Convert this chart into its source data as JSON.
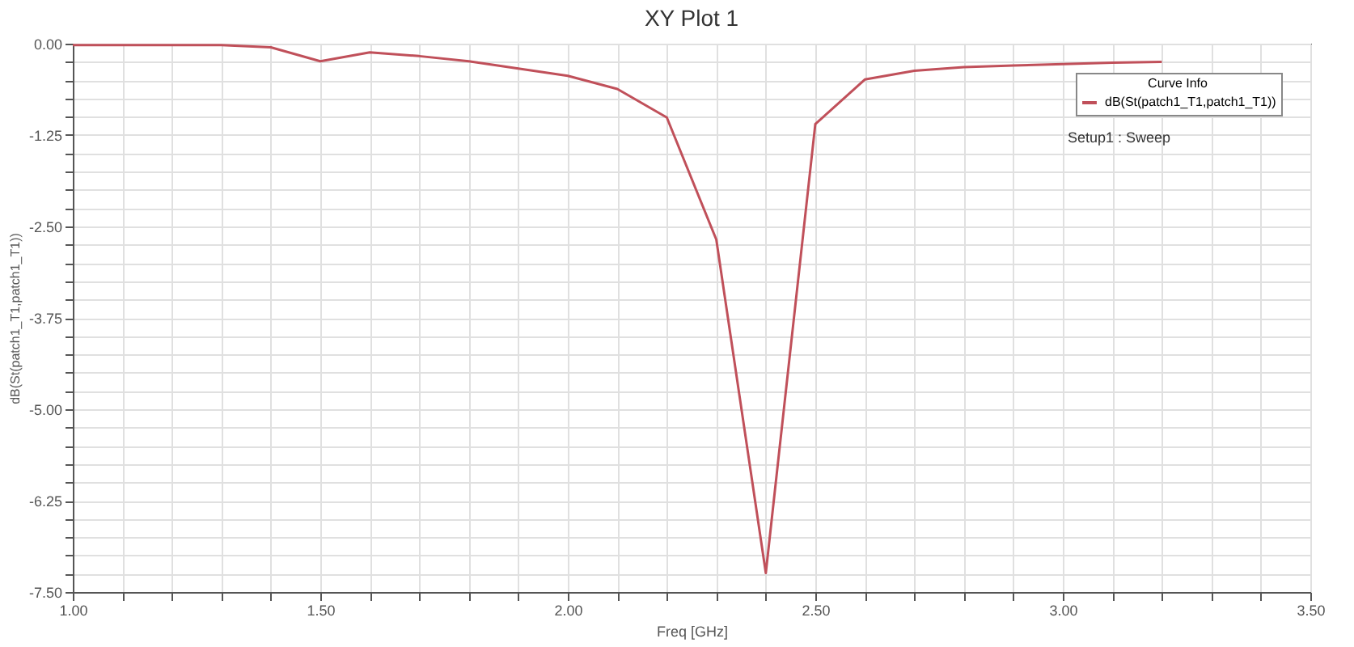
{
  "chart_data": {
    "type": "line",
    "title": "XY Plot 1",
    "xlabel": "Freq [GHz]",
    "ylabel": "dB(St(patch1_T1,patch1_T1))",
    "legend_title": "Curve Info",
    "annotations": [
      "Setup1 : Sweep"
    ],
    "x": [
      1.0,
      1.1,
      1.2,
      1.3,
      1.4,
      1.5,
      1.6,
      1.7,
      1.8,
      1.9,
      2.0,
      2.1,
      2.2,
      2.3,
      2.4,
      2.5,
      2.6,
      2.7,
      2.8,
      2.9,
      3.0,
      3.1,
      3.2
    ],
    "series": [
      {
        "name": "dB(St(patch1_T1,patch1_T1))",
        "color": "#c0505a",
        "values": [
          -0.02,
          -0.02,
          -0.02,
          -0.02,
          -0.05,
          -0.24,
          -0.12,
          -0.17,
          -0.24,
          -0.34,
          -0.44,
          -0.62,
          -1.01,
          -2.68,
          -7.24,
          -1.1,
          -0.49,
          -0.37,
          -0.32,
          -0.3,
          -0.28,
          -0.26,
          -0.25
        ]
      }
    ],
    "xlim": [
      1.0,
      3.5
    ],
    "xticks": [
      {
        "value": 1.0,
        "label": "1.00"
      },
      {
        "value": 1.1,
        "label": null
      },
      {
        "value": 1.2,
        "label": null
      },
      {
        "value": 1.3,
        "label": null
      },
      {
        "value": 1.4,
        "label": null
      },
      {
        "value": 1.5,
        "label": "1.50"
      },
      {
        "value": 1.6,
        "label": null
      },
      {
        "value": 1.7,
        "label": null
      },
      {
        "value": 1.8,
        "label": null
      },
      {
        "value": 1.9,
        "label": null
      },
      {
        "value": 2.0,
        "label": "2.00"
      },
      {
        "value": 2.1,
        "label": null
      },
      {
        "value": 2.2,
        "label": null
      },
      {
        "value": 2.3,
        "label": null
      },
      {
        "value": 2.4,
        "label": null
      },
      {
        "value": 2.5,
        "label": "2.50"
      },
      {
        "value": 2.6,
        "label": null
      },
      {
        "value": 2.7,
        "label": null
      },
      {
        "value": 2.8,
        "label": null
      },
      {
        "value": 2.9,
        "label": null
      },
      {
        "value": 3.0,
        "label": "3.00"
      },
      {
        "value": 3.1,
        "label": null
      },
      {
        "value": 3.2,
        "label": null
      },
      {
        "value": 3.3,
        "label": null
      },
      {
        "value": 3.4,
        "label": null
      },
      {
        "value": 3.5,
        "label": "3.50"
      }
    ],
    "ylim": [
      -7.5,
      0
    ],
    "yticks": [
      {
        "value": -7.5,
        "label": "-7.50"
      },
      {
        "value": -7.25,
        "label": null
      },
      {
        "value": -7.0,
        "label": null
      },
      {
        "value": -6.75,
        "label": null
      },
      {
        "value": -6.5,
        "label": null
      },
      {
        "value": -6.25,
        "label": "-6.25"
      },
      {
        "value": -6.0,
        "label": null
      },
      {
        "value": -5.75,
        "label": null
      },
      {
        "value": -5.5,
        "label": null
      },
      {
        "value": -5.25,
        "label": null
      },
      {
        "value": -5.0,
        "label": "-5.00"
      },
      {
        "value": -4.75,
        "label": null
      },
      {
        "value": -4.5,
        "label": null
      },
      {
        "value": -4.25,
        "label": null
      },
      {
        "value": -4.0,
        "label": null
      },
      {
        "value": -3.75,
        "label": "-3.75"
      },
      {
        "value": -3.5,
        "label": null
      },
      {
        "value": -3.25,
        "label": null
      },
      {
        "value": -3.0,
        "label": null
      },
      {
        "value": -2.75,
        "label": null
      },
      {
        "value": -2.5,
        "label": "-2.50"
      },
      {
        "value": -2.25,
        "label": null
      },
      {
        "value": -2.0,
        "label": null
      },
      {
        "value": -1.75,
        "label": null
      },
      {
        "value": -1.5,
        "label": null
      },
      {
        "value": -1.25,
        "label": "-1.25"
      },
      {
        "value": -1.0,
        "label": null
      },
      {
        "value": -0.75,
        "label": null
      },
      {
        "value": -0.5,
        "label": null
      },
      {
        "value": -0.25,
        "label": null
      },
      {
        "value": 0,
        "label": "0.00"
      }
    ],
    "grid": true,
    "legend": "top right",
    "marker": "none",
    "line_style": "solid"
  }
}
